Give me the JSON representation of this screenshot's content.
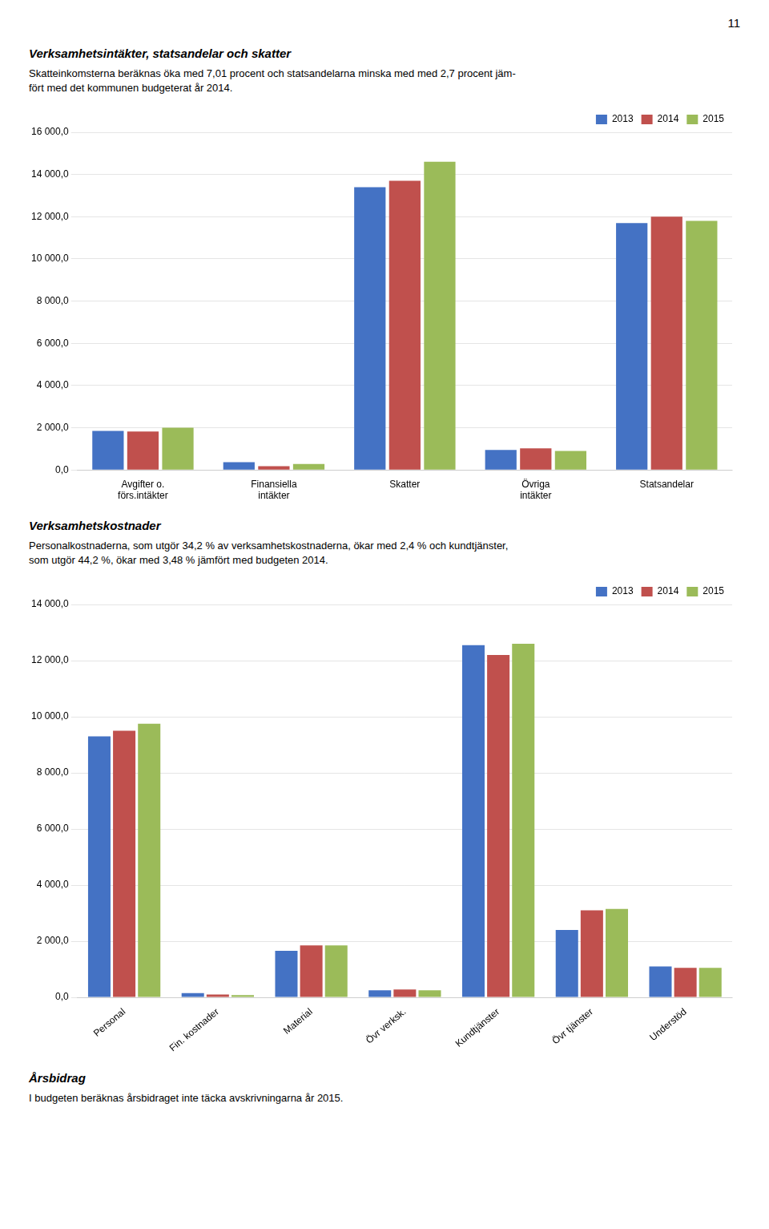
{
  "chart_data": [
    {
      "type": "bar",
      "title": "Verksamhetsintäkter, statsandelar och skatter",
      "subtitle": [
        "Skatteinkomsterna beräknas öka med 7,01 procent och statsandelarna minska med med 2,7 procent jäm-",
        "fört med det kommunen budgeterat år 2014."
      ],
      "categories": [
        "Avgifter o.\nförs.intäkter",
        "Finansiella\nintäkter",
        "Skatter",
        "Övriga\nintäkter",
        "Statsandelar"
      ],
      "series": [
        {
          "name": "2013",
          "color": "#4472C4",
          "values": [
            1850,
            370,
            13400,
            950,
            11700
          ]
        },
        {
          "name": "2014",
          "color": "#C0504D",
          "values": [
            1820,
            175,
            13700,
            1020,
            12000
          ]
        },
        {
          "name": "2015",
          "color": "#9BBB59",
          "values": [
            2000,
            280,
            14600,
            900,
            11800
          ]
        }
      ],
      "ylim": [
        0,
        16000
      ],
      "yticks": [
        {
          "value": 0,
          "label": "0,0"
        },
        {
          "value": 2000,
          "label": "2 000,0"
        },
        {
          "value": 4000,
          "label": "4 000,0"
        },
        {
          "value": 6000,
          "label": "6 000,0"
        },
        {
          "value": 8000,
          "label": "8 000,0"
        },
        {
          "value": 10000,
          "label": "10 000,0"
        },
        {
          "value": 12000,
          "label": "12 000,0"
        },
        {
          "value": 14000,
          "label": "14 000,0"
        },
        {
          "value": 16000,
          "label": "16 000,0"
        }
      ],
      "grid": true,
      "legend": "upper right"
    },
    {
      "type": "bar",
      "title": "Verksamhetskostnader",
      "subtitle": [
        "Personalkostnaderna, som utgör 34,2 % av verksamhetskostnaderna, ökar med 2,4 % och kundtjänster,",
        "som utgör 44,2 %, ökar med 3,48 % jämfört med budgeten 2014."
      ],
      "categories": [
        "Personal",
        "Fin. kostnader",
        "Material",
        "Övr verksk.",
        "Kundtjänster",
        "Övr tjänster",
        "Understöd"
      ],
      "series": [
        {
          "name": "2013",
          "color": "#4472C4",
          "values": [
            9300,
            150,
            1660,
            250,
            12550,
            2400,
            1100
          ]
        },
        {
          "name": "2014",
          "color": "#C0504D",
          "values": [
            9500,
            100,
            1850,
            280,
            12200,
            3100,
            1050
          ]
        },
        {
          "name": "2015",
          "color": "#9BBB59",
          "values": [
            9750,
            80,
            1850,
            250,
            12600,
            3150,
            1050
          ]
        }
      ],
      "ylim": [
        0,
        14000
      ],
      "yticks": [
        {
          "value": 0,
          "label": "0,0"
        },
        {
          "value": 2000,
          "label": "2 000,0"
        },
        {
          "value": 4000,
          "label": "4 000,0"
        },
        {
          "value": 6000,
          "label": "6 000,0"
        },
        {
          "value": 8000,
          "label": "8 000,0"
        },
        {
          "value": 10000,
          "label": "10 000,0"
        },
        {
          "value": 12000,
          "label": "12 000,0"
        },
        {
          "value": 14000,
          "label": "14 000,0"
        }
      ],
      "grid": true,
      "legend": "upper right"
    }
  ],
  "annotations": [
    "11",
    "Årsbidrag",
    "I budgeten beräknas årsbidraget inte täcka avskrivningarna år 2015."
  ]
}
